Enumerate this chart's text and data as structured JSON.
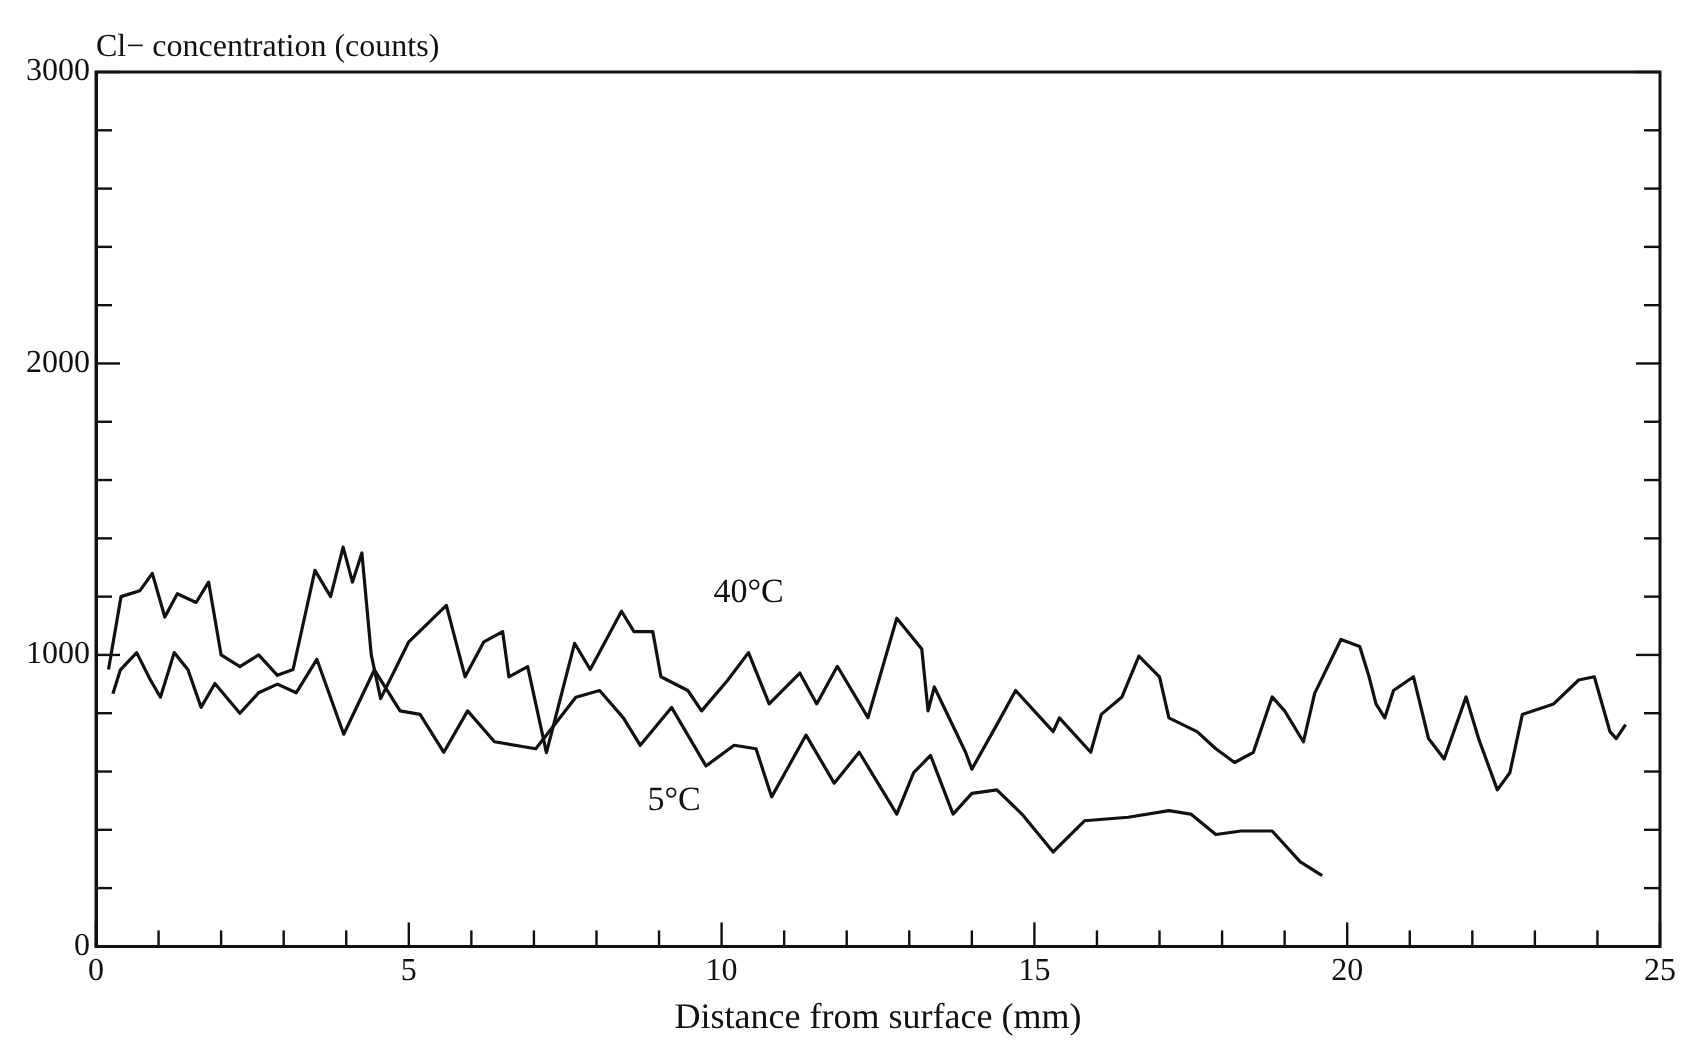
{
  "chart_data": {
    "type": "line",
    "ylabel": "Cl− concentration (counts)",
    "xlabel": "Distance from surface (mm)",
    "xlim": [
      0,
      25
    ],
    "ylim": [
      0,
      3000
    ],
    "xticks": [
      0,
      {
        "value": 1,
        "label": null
      },
      {
        "value": 2,
        "label": null
      },
      {
        "value": 3,
        "label": null
      },
      {
        "value": 4,
        "label": null
      },
      5,
      {
        "value": 6,
        "label": null
      },
      {
        "value": 7,
        "label": null
      },
      {
        "value": 8,
        "label": null
      },
      {
        "value": 9,
        "label": null
      },
      10,
      {
        "value": 11,
        "label": null
      },
      {
        "value": 12,
        "label": null
      },
      {
        "value": 13,
        "label": null
      },
      {
        "value": 14,
        "label": null
      },
      15,
      {
        "value": 16,
        "label": null
      },
      {
        "value": 17,
        "label": null
      },
      {
        "value": 18,
        "label": null
      },
      {
        "value": 19,
        "label": null
      },
      20,
      {
        "value": 21,
        "label": null
      },
      {
        "value": 22,
        "label": null
      },
      {
        "value": 23,
        "label": null
      },
      {
        "value": 24,
        "label": null
      },
      25
    ],
    "yticks": [
      0,
      {
        "value": 200,
        "label": null
      },
      {
        "value": 400,
        "label": null
      },
      {
        "value": 600,
        "label": null
      },
      {
        "value": 800,
        "label": null
      },
      1000,
      {
        "value": 1200,
        "label": null
      },
      {
        "value": 1400,
        "label": null
      },
      {
        "value": 1600,
        "label": null
      },
      {
        "value": 1800,
        "label": null
      },
      2000,
      {
        "value": 2200,
        "label": null
      },
      {
        "value": 2400,
        "label": null
      },
      {
        "value": 2600,
        "label": null
      },
      {
        "value": 2800,
        "label": null
      },
      3000
    ],
    "grid": false,
    "legend": false,
    "marker": "none",
    "line_style": "solid",
    "series": [
      {
        "name": "40°C",
        "color": "#111111",
        "x": [
          0.2,
          0.4,
          0.7,
          0.9,
          1.1,
          1.3,
          1.6,
          1.8,
          2.0,
          2.3,
          2.6,
          2.9,
          3.15,
          3.5,
          3.75,
          3.95,
          4.1,
          4.25,
          4.4,
          4.55,
          5.0,
          5.6,
          5.9,
          6.2,
          6.5,
          6.6,
          6.9,
          7.2,
          7.65,
          7.9,
          8.4,
          8.6,
          8.9,
          9.03,
          9.46,
          9.68,
          10.1,
          10.43,
          10.76,
          11.25,
          11.52,
          11.85,
          12.34,
          12.8,
          13.2,
          13.3,
          13.4,
          13.9,
          14.0,
          14.4,
          14.7,
          15.3,
          15.4,
          15.9,
          16.07,
          16.4,
          16.67,
          17.0,
          17.15,
          17.6,
          17.9,
          18.2,
          18.5,
          18.8,
          19.0,
          19.3,
          19.48,
          19.9,
          20.2,
          20.35,
          20.46,
          20.6,
          20.74,
          21.06,
          21.3,
          21.55,
          21.9,
          22.1,
          22.4,
          22.6,
          22.8,
          23.3,
          23.7,
          23.95,
          24.2,
          24.3,
          24.45
        ],
        "values": [
          950,
          1200,
          1220,
          1280,
          1130,
          1210,
          1180,
          1250,
          1000,
          960,
          1000,
          930,
          950,
          1290,
          1200,
          1370,
          1250,
          1350,
          1000,
          850,
          1045,
          1170,
          925,
          1045,
          1080,
          925,
          960,
          665,
          1040,
          950,
          1150,
          1080,
          1080,
          925,
          878,
          808,
          914,
          1008,
          832,
          938,
          832,
          961,
          785,
          1126,
          1020,
          808,
          890,
          666,
          608,
          761,
          878,
          737,
          784,
          666,
          796,
          856,
          996,
          925,
          784,
          737,
          678,
          631,
          666,
          856,
          808,
          702,
          868,
          1053,
          1029,
          925,
          832,
          784,
          878,
          925,
          713,
          643,
          856,
          713,
          537,
          596,
          796,
          832,
          914,
          925,
          737,
          713,
          761
        ]
      },
      {
        "name": "5°C",
        "color": "#111111",
        "x": [
          0.27,
          0.39,
          0.65,
          0.87,
          1.03,
          1.25,
          1.47,
          1.68,
          1.9,
          2.3,
          2.6,
          2.9,
          3.2,
          3.53,
          3.96,
          4.45,
          4.86,
          5.18,
          5.56,
          5.94,
          6.37,
          7.03,
          7.67,
          8.05,
          8.43,
          8.7,
          9.2,
          9.75,
          10.2,
          10.55,
          10.8,
          11.35,
          11.8,
          12.2,
          12.8,
          13.07,
          13.34,
          13.7,
          14.0,
          14.4,
          14.8,
          15.3,
          15.8,
          16.5,
          17.15,
          17.5,
          17.9,
          18.3,
          18.8,
          19.25,
          19.6
        ],
        "values": [
          867,
          949,
          1008,
          914,
          855,
          1008,
          949,
          820,
          902,
          800,
          870,
          900,
          870,
          985,
          728,
          949,
          808,
          796,
          666,
          808,
          702,
          678,
          855,
          878,
          784,
          690,
          820,
          619,
          690,
          678,
          513,
          725,
          560,
          666,
          454,
          596,
          655,
          454,
          525,
          537,
          454,
          324,
          431,
          443,
          466,
          454,
          384,
          396,
          396,
          290,
          243
        ]
      }
    ]
  }
}
